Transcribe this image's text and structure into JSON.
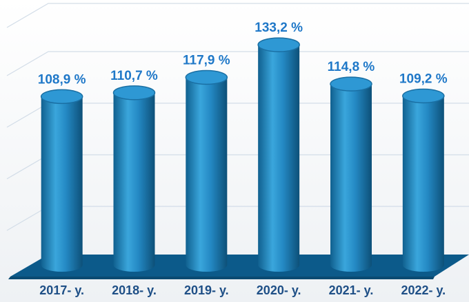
{
  "chart_data": {
    "type": "cylinder-bar",
    "categories": [
      "2017- y.",
      "2018- y.",
      "2019- y.",
      "2020- y.",
      "2021- y.",
      "2022- y."
    ],
    "values": [
      108.9,
      110.7,
      117.9,
      133.2,
      114.8,
      109.2
    ],
    "value_labels": [
      "108,9 %",
      "110,7 %",
      "117,9 %",
      "133,2 %",
      "114,8 %",
      "109,2 %"
    ],
    "color": "#2a8fcc",
    "ylim": [
      30,
      140
    ]
  }
}
